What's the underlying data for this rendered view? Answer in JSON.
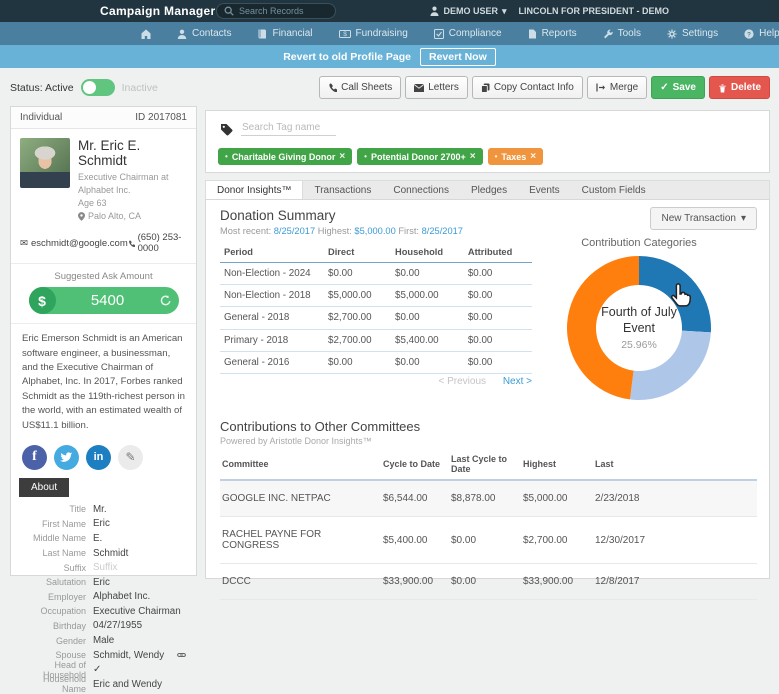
{
  "topbar": {
    "brand": "Campaign Manager",
    "search_placeholder": "Search Records",
    "user": "DEMO USER",
    "caret": "▾",
    "org": "LINCOLN FOR PRESIDENT - DEMO"
  },
  "nav": {
    "items": [
      "Contacts",
      "Financial",
      "Fundraising",
      "Compliance",
      "Reports",
      "Tools",
      "Settings",
      "Help"
    ]
  },
  "revert_bar": {
    "message": "Revert to old Profile Page",
    "button_label": "Revert Now"
  },
  "status_bar": {
    "status_label": "Status: Active",
    "inactive_label": "Inactive",
    "call_sheets": "Call Sheets",
    "letters": "Letters",
    "copy_contact": "Copy Contact Info",
    "merge": "Merge",
    "save": "Save",
    "delete": "Delete",
    "save_check": "✓"
  },
  "profile": {
    "type": "Individual",
    "record_id": "ID 2017081",
    "name": "Mr. Eric E. Schmidt",
    "job": "Executive Chairman at Alphabet Inc.",
    "age": "Age 63",
    "location": "Palo Alto, CA",
    "email": "eschmidt@google.com",
    "phone": "(650) 253-0000",
    "ask_label": "Suggested Ask Amount",
    "ask_currency": "$",
    "ask_amount": "5400",
    "bio": "Eric Emerson Schmidt is an American software engineer, a businessman, and the Executive Chairman of Alphabet, Inc. In 2017, Forbes ranked Schmidt as the 119th-richest person in the world, with an estimated wealth of US$11.1 billion.",
    "social": {
      "facebook": "f",
      "linkedin": "in"
    },
    "about_label": "About",
    "fields": [
      {
        "label": "Title",
        "value": "Mr."
      },
      {
        "label": "First Name",
        "value": "Eric"
      },
      {
        "label": "Middle Name",
        "value": "E."
      },
      {
        "label": "Last Name",
        "value": "Schmidt"
      },
      {
        "label": "Suffix",
        "value": "Suffix"
      },
      {
        "label": "Salutation",
        "value": "Eric"
      },
      {
        "label": "Employer",
        "value": "Alphabet Inc."
      },
      {
        "label": "Occupation",
        "value": "Executive Chairman"
      },
      {
        "label": "Birthday",
        "value": "04/27/1955"
      },
      {
        "label": "Gender",
        "value": "Male"
      },
      {
        "label": "Spouse",
        "value": "Schmidt, Wendy"
      },
      {
        "label": "Head of Household",
        "value": "✓"
      },
      {
        "label": "Household Name",
        "value": "Eric and Wendy"
      }
    ]
  },
  "tags": {
    "search_placeholder": "Search Tag name",
    "items": [
      {
        "label": "Charitable Giving Donor",
        "remove": "×",
        "color": "#41a446"
      },
      {
        "label": "Potential Donor 2700+",
        "remove": "×",
        "color": "#41a446"
      },
      {
        "label": "Taxes",
        "remove": "×",
        "color": "#f0953e"
      }
    ]
  },
  "tabs": {
    "items": [
      "Donor Insights™",
      "Transactions",
      "Connections",
      "Pledges",
      "Events",
      "Custom Fields"
    ],
    "active": "Donor Insights™"
  },
  "donation_summary": {
    "title": "Donation Summary",
    "stats": [
      {
        "label": "Most recent:",
        "value": "8/25/2017"
      },
      {
        "label": "Highest:",
        "value": "$5,000.00"
      },
      {
        "label": "First:",
        "value": "8/25/2017"
      }
    ],
    "new_transaction_label": "New Transaction",
    "new_transaction_caret": "▾",
    "columns": [
      "Period",
      "Direct",
      "Household",
      "Attributed"
    ],
    "rows": [
      [
        "Non-Election - 2024",
        "$0.00",
        "$0.00",
        "$0.00"
      ],
      [
        "Non-Election - 2018",
        "$5,000.00",
        "$5,000.00",
        "$0.00"
      ],
      [
        "General - 2018",
        "$2,700.00",
        "$0.00",
        "$0.00"
      ],
      [
        "Primary - 2018",
        "$2,700.00",
        "$5,400.00",
        "$0.00"
      ],
      [
        "General - 2016",
        "$0.00",
        "$0.00",
        "$0.00"
      ]
    ],
    "prev_label": "< Previous",
    "next_label": "Next >"
  },
  "chart_data": {
    "type": "pie",
    "donut": true,
    "title": "Contribution Categories",
    "slices": [
      {
        "label": "Fourth of July Event",
        "value": 25.96,
        "color": "#1f77b4"
      },
      {
        "label": "",
        "value": 26.04,
        "color": "#aec7e8"
      },
      {
        "label": "",
        "value": 48.0,
        "color": "#ff7f0e"
      }
    ],
    "hovered_slice": "Fourth of July Event",
    "center_label": "Fourth of July Event",
    "center_value": "25.96%",
    "legend": "none"
  },
  "committees": {
    "title": "Contributions to Other Committees",
    "subtitle": "Powered by Aristotle Donor Insights™",
    "columns": [
      "Committee",
      "Cycle to Date",
      "Last Cycle to Date",
      "Highest",
      "Last"
    ],
    "rows": [
      [
        "GOOGLE INC. NETPAC",
        "$6,544.00",
        "$8,878.00",
        "$5,000.00",
        "2/23/2018"
      ],
      [
        "RACHEL PAYNE FOR CONGRESS",
        "$5,400.00",
        "$0.00",
        "$2,700.00",
        "12/30/2017"
      ],
      [
        "DCCC",
        "$33,900.00",
        "$0.00",
        "$33,900.00",
        "12/8/2017"
      ]
    ]
  }
}
